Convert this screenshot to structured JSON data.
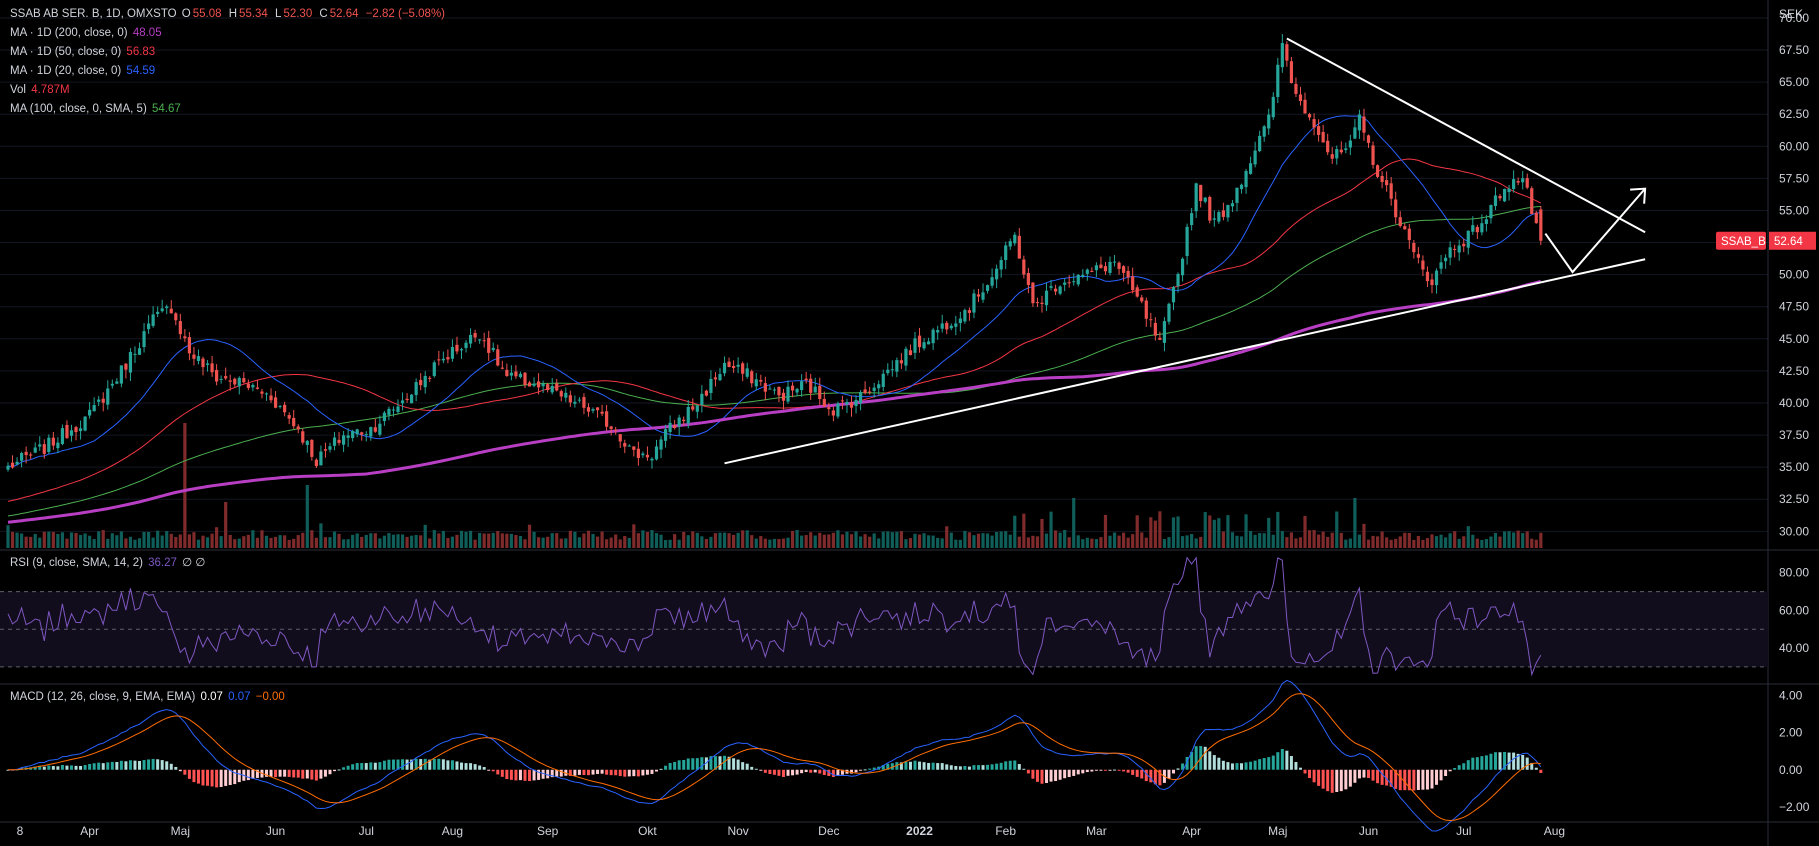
{
  "header": {
    "symbol": "SSAB AB SER. B, 1D, OMXSTO",
    "ohlc": [
      {
        "label": "O",
        "value": "55.08"
      },
      {
        "label": "H",
        "value": "55.34"
      },
      {
        "label": "L",
        "value": "52.30"
      },
      {
        "label": "C",
        "value": "52.64"
      }
    ],
    "change": "−2.82 (−5.08%)"
  },
  "indicators": [
    {
      "label": "MA · 1D (200, close, 0)",
      "value": "48.05",
      "color": "#b83ec4"
    },
    {
      "label": "MA · 1D (50, close, 0)",
      "value": "56.83",
      "color": "#f23645"
    },
    {
      "label": "MA · 1D (20, close, 0)",
      "value": "54.59",
      "color": "#2962ff"
    },
    {
      "label": "Vol",
      "value": "4.787M",
      "color": "#f23645"
    },
    {
      "label": "MA (100, close, 0, SMA, 5)",
      "value": "54.67",
      "color": "#4caf50"
    }
  ],
  "rsi_legend": {
    "label": "RSI (9, close, SMA, 14, 2)",
    "value": "36.27",
    "extra": "∅ ∅",
    "color": "#7e57c2"
  },
  "macd_legend": {
    "label": "MACD (12, 26, close, 9, EMA, EMA)",
    "values": [
      {
        "value": "0.07",
        "color": "#ffffff"
      },
      {
        "value": "0.07",
        "color": "#2962ff"
      },
      {
        "value": "−0.00",
        "color": "#ff6d00"
      }
    ]
  },
  "currency": "SEK",
  "price_tag": {
    "name": "SSAB_B",
    "value": "52.64",
    "color": "#f23645"
  },
  "colors": {
    "up": "#26a69a",
    "down": "#ef5350",
    "background": "#000000",
    "grid": "#1e222d"
  },
  "chart_data": [
    {
      "type": "candlestick",
      "x_ticks": [
        "8",
        "Apr",
        "Maj",
        "Jun",
        "Jul",
        "Aug",
        "Sep",
        "Okt",
        "Nov",
        "Dec",
        "2022",
        "Feb",
        "Mar",
        "Apr",
        "Maj",
        "Jun",
        "Jul",
        "Aug"
      ],
      "y_ticks": [
        "70.00",
        "67.50",
        "65.00",
        "62.50",
        "60.00",
        "57.50",
        "55.00",
        "52.50",
        "50.00",
        "47.50",
        "45.00",
        "42.50",
        "40.00",
        "37.50",
        "35.00",
        "32.50",
        "30.00"
      ],
      "ylim": [
        28.7,
        71.4
      ],
      "close_anchors": [
        [
          0,
          35.0
        ],
        [
          8,
          36.5
        ],
        [
          18,
          39.0
        ],
        [
          25,
          42.5
        ],
        [
          32,
          46.5
        ],
        [
          36,
          47.5
        ],
        [
          40,
          44.0
        ],
        [
          46,
          42.0
        ],
        [
          52,
          41.5
        ],
        [
          58,
          40.5
        ],
        [
          64,
          38.0
        ],
        [
          68,
          35.5
        ],
        [
          74,
          37.5
        ],
        [
          80,
          38.0
        ],
        [
          88,
          40.5
        ],
        [
          96,
          43.5
        ],
        [
          104,
          45.5
        ],
        [
          110,
          42.0
        ],
        [
          116,
          41.5
        ],
        [
          122,
          40.5
        ],
        [
          128,
          39.5
        ],
        [
          134,
          38.0
        ],
        [
          138,
          36.0
        ],
        [
          142,
          36.0
        ],
        [
          146,
          38.0
        ],
        [
          152,
          40.0
        ],
        [
          158,
          43.0
        ],
        [
          164,
          42.0
        ],
        [
          170,
          40.5
        ],
        [
          176,
          41.5
        ],
        [
          182,
          39.5
        ],
        [
          188,
          40.5
        ],
        [
          194,
          42.5
        ],
        [
          200,
          44.5
        ],
        [
          206,
          46.0
        ],
        [
          212,
          47.5
        ],
        [
          218,
          50.5
        ],
        [
          222,
          53.0
        ],
        [
          226,
          47.5
        ],
        [
          232,
          49.5
        ],
        [
          238,
          50.0
        ],
        [
          244,
          51.0
        ],
        [
          250,
          47.5
        ],
        [
          254,
          44.5
        ],
        [
          258,
          50.0
        ],
        [
          262,
          57.0
        ],
        [
          266,
          54.0
        ],
        [
          270,
          56.0
        ],
        [
          274,
          59.0
        ],
        [
          278,
          62.0
        ],
        [
          281,
          68.0
        ],
        [
          284,
          64.0
        ],
        [
          288,
          62.0
        ],
        [
          292,
          59.0
        ],
        [
          296,
          60.0
        ],
        [
          298,
          62.0
        ],
        [
          302,
          58.0
        ],
        [
          306,
          55.0
        ],
        [
          310,
          51.5
        ],
        [
          314,
          49.5
        ],
        [
          318,
          52.0
        ],
        [
          322,
          53.0
        ],
        [
          326,
          54.5
        ],
        [
          330,
          57.0
        ],
        [
          334,
          57.5
        ],
        [
          336,
          55.0
        ],
        [
          338,
          52.64
        ]
      ],
      "triangle": {
        "upper": [
          {
            "x": 282,
            "y": 68.4
          },
          {
            "x": 361,
            "y": 53.3
          }
        ],
        "lower": [
          {
            "x": 158,
            "y": 35.3
          },
          {
            "x": 361,
            "y": 51.2
          }
        ],
        "arrow": [
          {
            "x": 339,
            "y": 53.2
          },
          {
            "x": 345,
            "y": 50.2
          },
          {
            "x": 361,
            "y": 56.7
          }
        ]
      }
    },
    {
      "type": "line",
      "name": "RSI (9, close, SMA, 14, 2)",
      "y_ticks": [
        "80.00",
        "60.00",
        "40.00"
      ],
      "bands": [
        70,
        50,
        30
      ],
      "ylim": [
        22,
        91
      ],
      "last": 36.27
    },
    {
      "type": "bar",
      "name": "MACD (12, 26, close, 9, EMA, EMA)",
      "y_ticks": [
        "4.00",
        "2.00",
        "0.00",
        "−2.00"
      ],
      "ylim": [
        -2.7,
        4.5
      ]
    }
  ]
}
